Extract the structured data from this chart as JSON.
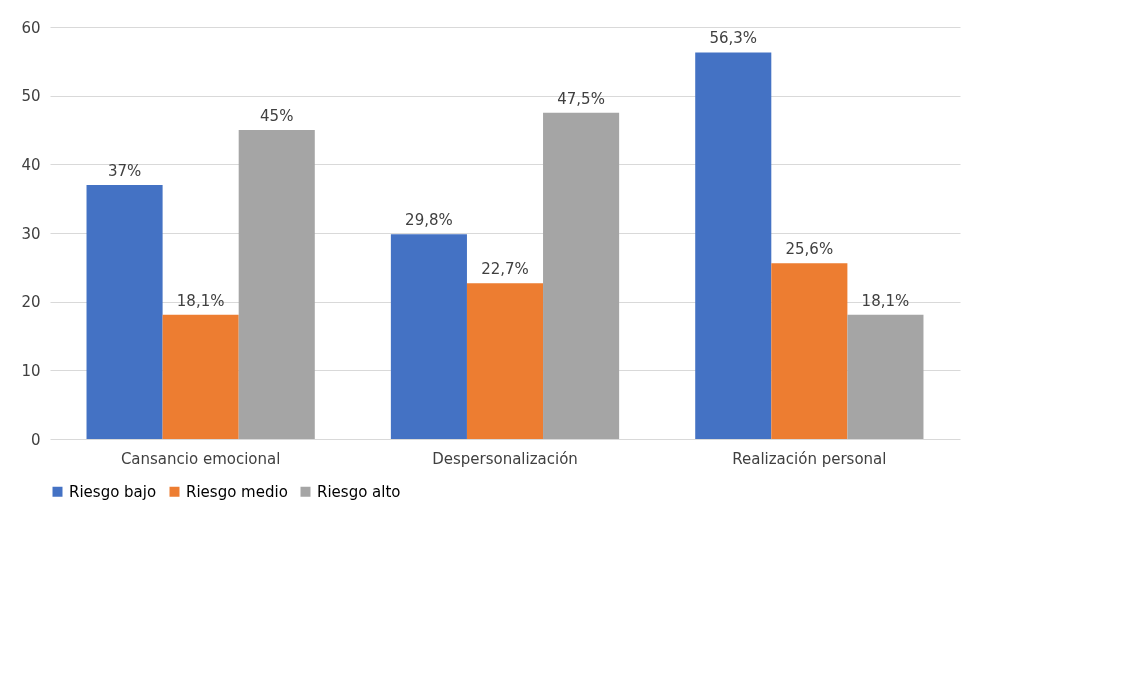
{
  "chart_data": {
    "type": "bar",
    "categories": [
      "Cansancio emocional",
      "Despersonalización",
      "Realización personal"
    ],
    "series": [
      {
        "name": "Riesgo bajo",
        "color": "#4472c4",
        "values": [
          37,
          29.8,
          56.3
        ],
        "value_labels": [
          "37%",
          "29,8%",
          "56,3%"
        ]
      },
      {
        "name": "Riesgo medio",
        "color": "#ed7d31",
        "values": [
          18.1,
          22.7,
          25.6
        ],
        "value_labels": [
          "18,1%",
          "22,7%",
          "25,6%"
        ]
      },
      {
        "name": "Riesgo alto",
        "color": "#a5a5a5",
        "values": [
          45,
          47.5,
          18.1
        ],
        "value_labels": [
          "45%",
          "47,5%",
          "18,1%"
        ]
      }
    ],
    "ylim": [
      0,
      60
    ],
    "yticks": [
      0,
      10,
      20,
      30,
      40,
      50,
      60
    ],
    "grid": "y",
    "legend": "bottom"
  }
}
